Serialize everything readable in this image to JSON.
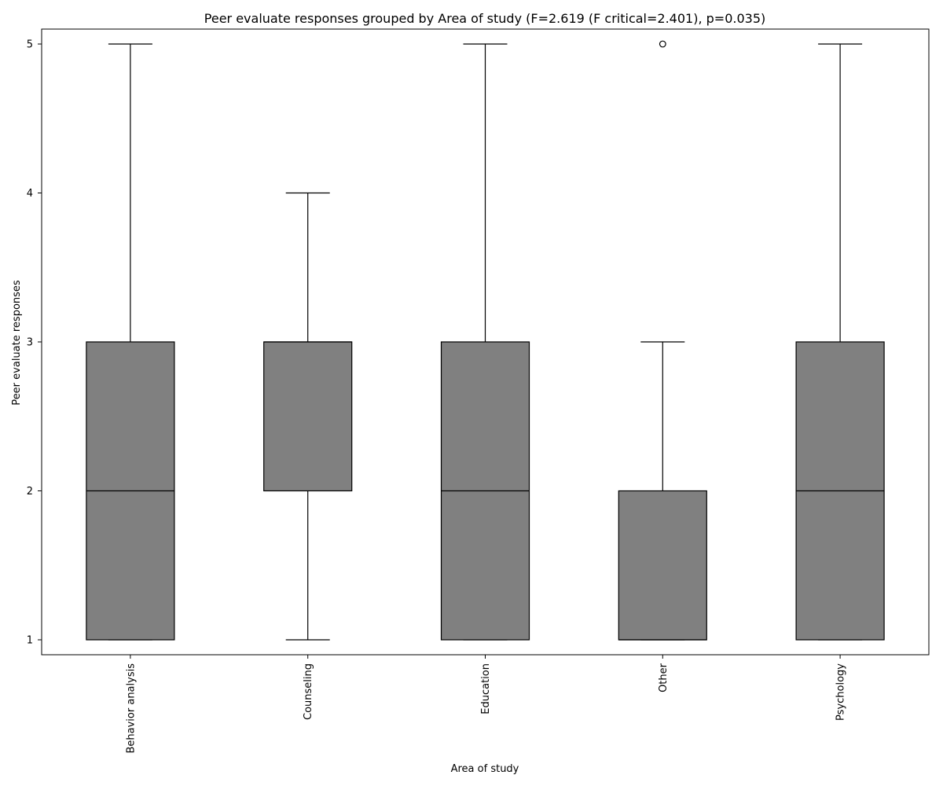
{
  "chart_data": {
    "type": "box",
    "title": "Peer evaluate responses grouped by Area of study (F=2.619 (F critical=2.401), p=0.035)",
    "xlabel": "Area of study",
    "ylabel": "Peer evaluate responses",
    "categories": [
      "Behavior analysis",
      "Counseling",
      "Education",
      "Other",
      "Psychology"
    ],
    "boxes": [
      {
        "category": "Behavior analysis",
        "whisker_low": 1,
        "q1": 1,
        "median": 2,
        "q3": 3,
        "whisker_high": 5,
        "outliers": []
      },
      {
        "category": "Counseling",
        "whisker_low": 1,
        "q1": 2,
        "median": 3,
        "q3": 3,
        "whisker_high": 4,
        "outliers": []
      },
      {
        "category": "Education",
        "whisker_low": 1,
        "q1": 1,
        "median": 2,
        "q3": 3,
        "whisker_high": 5,
        "outliers": []
      },
      {
        "category": "Other",
        "whisker_low": 1,
        "q1": 1,
        "median": 1,
        "q3": 2,
        "whisker_high": 3,
        "outliers": [
          5
        ]
      },
      {
        "category": "Psychology",
        "whisker_low": 1,
        "q1": 1,
        "median": 2,
        "q3": 3,
        "whisker_high": 5,
        "outliers": []
      }
    ],
    "yticks": [
      1,
      2,
      3,
      4,
      5
    ],
    "ylim": [
      0.9,
      5.1
    ],
    "grid": false,
    "colors": {
      "box_fill": "#808080",
      "line": "#000000",
      "background": "#ffffff"
    }
  }
}
